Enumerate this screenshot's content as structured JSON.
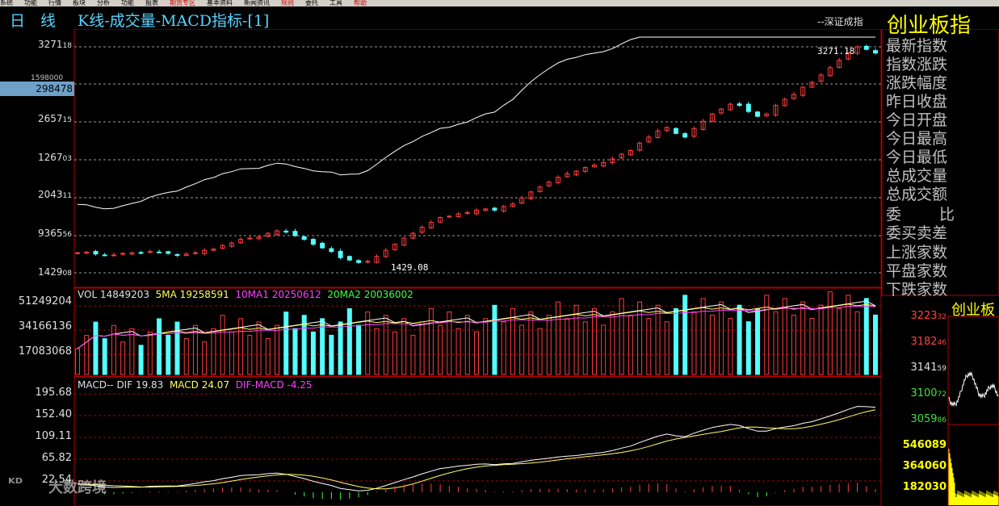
{
  "menu": {
    "items": [
      "系统",
      "功能",
      "行情",
      "板块",
      "分析",
      "功能",
      "报表",
      "期货专区",
      "基本资料",
      "新闻资讯",
      "规则",
      "委托",
      "工具",
      "帮助"
    ],
    "hot_items": [
      "期货专区",
      "规则",
      "帮助"
    ]
  },
  "title": {
    "period": "日　线",
    "indicator": "K线-成交量-MACD指标-[1]",
    "compare": "--深证成指",
    "index_name": "创业板指"
  },
  "price_panel": {
    "y_labels": [
      "3271",
      "2984",
      "2657",
      "1267",
      "2043",
      "9365",
      "1429"
    ],
    "y_labels_small": [
      "18",
      "78",
      "15",
      "03",
      "11",
      "56",
      "08"
    ],
    "overlap_label": "1598000",
    "highlight_label": "298478",
    "high_marker": "3271.18",
    "low_marker": "1429.08"
  },
  "volume_panel": {
    "vol_label": "VOL 14849203",
    "ma5_label": "5MA 19258591",
    "ma10_label": "10MA1 20250612",
    "ma20_label": "20MA2 20036002",
    "y_labels": [
      "51249204",
      "34166136",
      "17083068"
    ]
  },
  "macd_panel": {
    "title_label": "MACD-- DIF 19.83",
    "macd_label": "MACD 24.07",
    "dif_macd_label": "DIF-MACD -4.25",
    "y_labels": [
      "195.68",
      "152.40",
      "109.11",
      "65.82",
      "22.54"
    ]
  },
  "right_panel": {
    "labels": [
      "最新指数",
      "指数涨跌",
      "涨跌幅度",
      "昨日收盘",
      "今日开盘",
      "今日最高",
      "今日最低",
      "总成交量",
      "总成交额"
    ],
    "entrust_a": "委",
    "entrust_b": "比",
    "entrust_diff": "委买卖差",
    "breadth": [
      "上涨家数",
      "平盘家数",
      "下跌家数"
    ]
  },
  "mini_chart": {
    "title": "创业板",
    "price_labels": [
      "3223",
      "3182",
      "3141",
      "3100",
      "3059"
    ],
    "price_labels_small": [
      "32",
      "46",
      "59",
      "72",
      "86"
    ],
    "volume_labels": [
      "546089",
      "364060",
      "182030"
    ]
  },
  "watermark": "大数跨境",
  "colors": {
    "up": "#ff3c3c",
    "down": "#54ffff",
    "frame": "#b00000",
    "ma_white": "#ffffff",
    "ma_yellow": "#ffff66",
    "ma_magenta": "#ff40ff",
    "ma_green": "#40ff40"
  },
  "chart_data": {
    "type": "candlestick",
    "title": "创业板指",
    "close_series": [
      1580,
      1585,
      1570,
      1560,
      1562,
      1575,
      1580,
      1578,
      1590,
      1585,
      1575,
      1560,
      1570,
      1580,
      1600,
      1610,
      1640,
      1660,
      1690,
      1700,
      1710,
      1740,
      1760,
      1750,
      1720,
      1690,
      1650,
      1620,
      1590,
      1540,
      1520,
      1500,
      1510,
      1550,
      1600,
      1650,
      1700,
      1740,
      1790,
      1830,
      1870,
      1880,
      1900,
      1910,
      1930,
      1940,
      1930,
      1960,
      1980,
      2030,
      2080,
      2120,
      2160,
      2200,
      2230,
      2250,
      2280,
      2300,
      2320,
      2350,
      2390,
      2420,
      2480,
      2530,
      2580,
      2610,
      2560,
      2530,
      2600,
      2660,
      2720,
      2760,
      2800,
      2790,
      2740,
      2700,
      2720,
      2790,
      2840,
      2880,
      2940,
      2980,
      3040,
      3100,
      3160,
      3221,
      3271,
      3250,
      3220
    ]
  }
}
